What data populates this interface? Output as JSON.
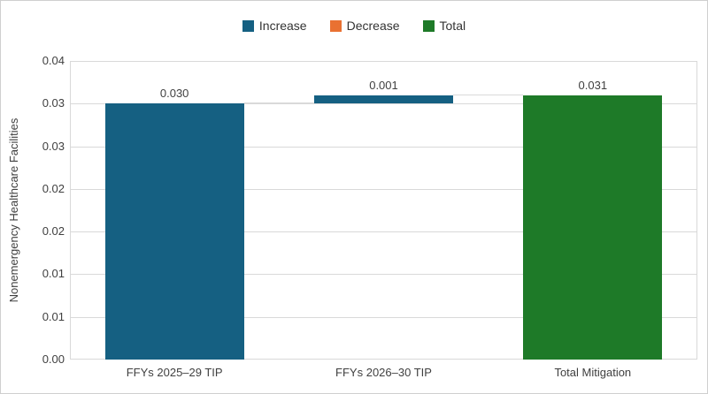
{
  "chart_data": {
    "type": "bar",
    "subtype": "waterfall",
    "title": "",
    "ylabel": "Nonemergency Healthcare Facilities",
    "xlabel": "",
    "ylim": [
      0,
      0.035
    ],
    "ytick_step": 0.005,
    "ytick_labels_top_to_bottom": [
      "0.04",
      "0.03",
      "0.03",
      "0.02",
      "0.02",
      "0.01",
      "0.01",
      "0.00"
    ],
    "grid": true,
    "legend_position": "top",
    "series": [
      {
        "name": "Increase",
        "color": "#156082"
      },
      {
        "name": "Decrease",
        "color": "#E97132"
      },
      {
        "name": "Total",
        "color": "#1E7A28"
      }
    ],
    "categories": [
      "FFYs 2025–29 TIP",
      "FFYs 2026–30 TIP",
      "Total Mitigation"
    ],
    "bars": [
      {
        "category": "FFYs 2025–29 TIP",
        "series": "Increase",
        "label": "0.030",
        "value": 0.03,
        "start": 0,
        "end": 0.03
      },
      {
        "category": "FFYs 2026–30 TIP",
        "series": "Increase",
        "label": "0.001",
        "value": 0.001,
        "start": 0.03,
        "end": 0.031
      },
      {
        "category": "Total Mitigation",
        "series": "Total",
        "label": "0.031",
        "value": 0.031,
        "start": 0,
        "end": 0.031
      }
    ]
  },
  "colors": {
    "background": "#ffffff",
    "border": "#cfcfcf",
    "grid": "#d9d9d9",
    "axis_text": "#404040",
    "legend_text": "#333333",
    "data_label_text": "#404040"
  }
}
